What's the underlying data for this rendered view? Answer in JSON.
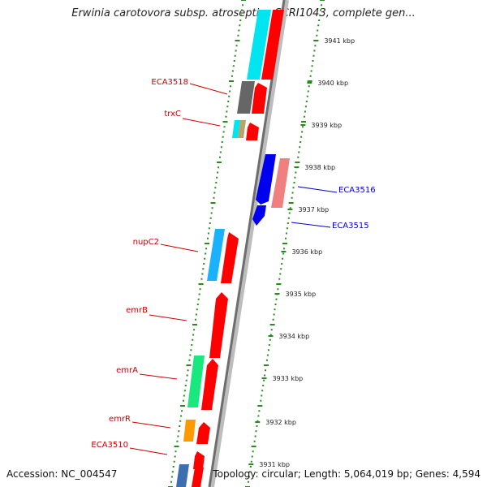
{
  "title": "Erwinia carotovora subsp. atroseptica SCRI1043, complete gen...",
  "accession": "Accession: NC_004547",
  "topology": "Topology: circular; Length: 5,064,019 bp; Genes: 4,594",
  "colors": {
    "forward_label": "#cc0000",
    "reverse_label": "#0000cc",
    "backbone": "#8c8c8c",
    "tick": "#2a8a1f"
  },
  "kbp_ticks": [
    "3941 kbp",
    "3940 kbp",
    "3939 kbp",
    "3938 kbp",
    "3937 kbp",
    "3936 kbp",
    "3935 kbp",
    "3934 kbp",
    "3933 kbp",
    "3932 kbp",
    "3931 kbp"
  ],
  "gene_labels": [
    {
      "text": "ECA3518",
      "strand": "forward"
    },
    {
      "text": "trxC",
      "strand": "forward"
    },
    {
      "text": "ECA3516",
      "strand": "reverse"
    },
    {
      "text": "ECA3515",
      "strand": "reverse"
    },
    {
      "text": "nupC2",
      "strand": "forward"
    },
    {
      "text": "emrB",
      "strand": "forward"
    },
    {
      "text": "emrA",
      "strand": "forward"
    },
    {
      "text": "emrR",
      "strand": "forward"
    },
    {
      "text": "ECA3510",
      "strand": "forward"
    }
  ]
}
